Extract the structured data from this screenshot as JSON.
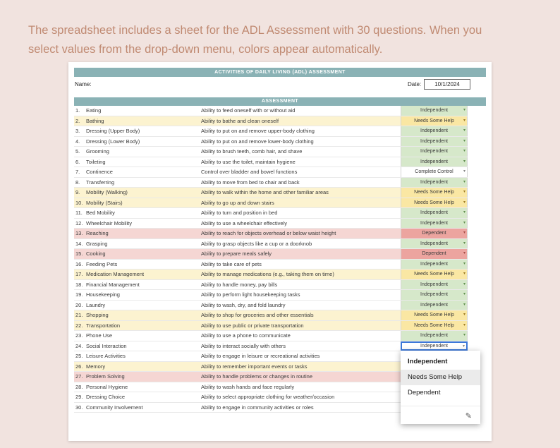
{
  "page": {
    "caption_line1": "The spreadsheet includes a sheet for the ADL Assessment with 30 questions. When you",
    "caption_line2": "select values from the drop-down menu, colors appear automatically."
  },
  "colors": {
    "page_bg": "#f1e3df",
    "caption_text": "#c08a72",
    "header_bg": "#8ab2b5",
    "independent_green": "#d6e8ca",
    "needs_help_yellow_row": "#fcf3d0",
    "needs_help_yellow_cell": "#fae7a3",
    "dependent_pink_row": "#f5d6d3",
    "dependent_red_cell": "#eca49f",
    "selection_border": "#3c78d8"
  },
  "sheet": {
    "title": "ACTIVITIES OF DAILY LIVING (ADL) ASSESSMENT",
    "name_label": "Name:",
    "date_label": "Date:",
    "date_value": "10/1/2024",
    "section_header": "ASSESSMENT",
    "rows": [
      {
        "num": "1.",
        "item": "Eating",
        "desc": "Ability to feed oneself with or without aid",
        "status": "Independent",
        "row_bg": "white",
        "status_style": "green"
      },
      {
        "num": "2.",
        "item": "Bathing",
        "desc": "Ability to bathe and clean oneself",
        "status": "Needs Some Help",
        "row_bg": "yellow",
        "status_style": "yellow"
      },
      {
        "num": "3.",
        "item": "Dressing (Upper Body)",
        "desc": "Ability to put on and remove upper-body clothing",
        "status": "Independent",
        "row_bg": "white",
        "status_style": "green"
      },
      {
        "num": "4.",
        "item": "Dressing (Lower Body)",
        "desc": "Ability to put on and remove lower-body clothing",
        "status": "Independent",
        "row_bg": "white",
        "status_style": "green"
      },
      {
        "num": "5.",
        "item": "Grooming",
        "desc": "Ability to brush teeth, comb hair, and shave",
        "status": "Independent",
        "row_bg": "white",
        "status_style": "green"
      },
      {
        "num": "6.",
        "item": "Toileting",
        "desc": "Ability to use the toilet, maintain hygiene",
        "status": "Independent",
        "row_bg": "white",
        "status_style": "green"
      },
      {
        "num": "7.",
        "item": "Continence",
        "desc": "Control over bladder and bowel functions",
        "status": "Complete Control",
        "row_bg": "white",
        "status_style": "plain"
      },
      {
        "num": "8.",
        "item": "Transferring",
        "desc": "Ability to move from bed to chair and back",
        "status": "Independent",
        "row_bg": "white",
        "status_style": "green"
      },
      {
        "num": "9.",
        "item": "Mobility (Walking)",
        "desc": "Ability to walk within the home and other familiar areas",
        "status": "Needs Some Help",
        "row_bg": "yellow",
        "status_style": "yellow"
      },
      {
        "num": "10.",
        "item": "Mobility (Stairs)",
        "desc": "Ability to go up and down stairs",
        "status": "Needs Some Help",
        "row_bg": "yellow",
        "status_style": "yellow"
      },
      {
        "num": "11.",
        "item": "Bed Mobility",
        "desc": "Ability to turn and position in bed",
        "status": "Independent",
        "row_bg": "white",
        "status_style": "green"
      },
      {
        "num": "12.",
        "item": "Wheelchair Mobility",
        "desc": "Ability to use a wheelchair effectively",
        "status": "Independent",
        "row_bg": "white",
        "status_style": "green"
      },
      {
        "num": "13.",
        "item": "Reaching",
        "desc": "Ability to reach for objects overhead or below waist height",
        "status": "Dependent",
        "row_bg": "pink",
        "status_style": "red"
      },
      {
        "num": "14.",
        "item": "Grasping",
        "desc": "Ability to grasp objects like a cup or a doorknob",
        "status": "Independent",
        "row_bg": "white",
        "status_style": "green"
      },
      {
        "num": "15.",
        "item": "Cooking",
        "desc": "Ability to prepare meals safely",
        "status": "Dependent",
        "row_bg": "pink",
        "status_style": "red"
      },
      {
        "num": "16.",
        "item": "Feeding Pets",
        "desc": "Ability to take care of pets",
        "status": "Independent",
        "row_bg": "white",
        "status_style": "green"
      },
      {
        "num": "17.",
        "item": "Medication Management",
        "desc": "Ability to manage medications (e.g., taking them on time)",
        "status": "Needs Some Help",
        "row_bg": "yellow",
        "status_style": "yellow"
      },
      {
        "num": "18.",
        "item": "Financial Management",
        "desc": "Ability to handle money, pay bills",
        "status": "Independent",
        "row_bg": "white",
        "status_style": "green"
      },
      {
        "num": "19.",
        "item": "Housekeeping",
        "desc": "Ability to perform light housekeeping tasks",
        "status": "Independent",
        "row_bg": "white",
        "status_style": "green"
      },
      {
        "num": "20.",
        "item": "Laundry",
        "desc": "Ability to wash, dry, and fold laundry",
        "status": "Independent",
        "row_bg": "white",
        "status_style": "green"
      },
      {
        "num": "21.",
        "item": "Shopping",
        "desc": "Ability to shop for groceries and other essentials",
        "status": "Needs Some Help",
        "row_bg": "yellow",
        "status_style": "yellow"
      },
      {
        "num": "22.",
        "item": "Transportation",
        "desc": "Ability to use public or private transportation",
        "status": "Needs Some Help",
        "row_bg": "yellow",
        "status_style": "yellow"
      },
      {
        "num": "23.",
        "item": "Phone Use",
        "desc": "Ability to use a phone to communicate",
        "status": "Independent",
        "row_bg": "white",
        "status_style": "green"
      },
      {
        "num": "24.",
        "item": "Social Interaction",
        "desc": "Ability to interact socially with others",
        "status": "Independent",
        "row_bg": "white",
        "status_style": "selected"
      },
      {
        "num": "25.",
        "item": "Leisure Activities",
        "desc": "Ability to engage in leisure or recreational activities",
        "status": "",
        "row_bg": "white",
        "status_style": "hidden"
      },
      {
        "num": "26.",
        "item": "Memory",
        "desc": "Ability to remember important events or tasks",
        "status": "",
        "row_bg": "yellow",
        "status_style": "hidden"
      },
      {
        "num": "27.",
        "item": "Problem Solving",
        "desc": "Ability to handle problems or changes in routine",
        "status": "",
        "row_bg": "pink",
        "status_style": "hidden"
      },
      {
        "num": "28.",
        "item": "Personal Hygiene",
        "desc": "Ability to wash hands and face regularly",
        "status": "",
        "row_bg": "white",
        "status_style": "hidden"
      },
      {
        "num": "29.",
        "item": "Dressing Choice",
        "desc": "Ability to select appropriate clothing for weather/occasion",
        "status": "",
        "row_bg": "white",
        "status_style": "hidden"
      },
      {
        "num": "30.",
        "item": "Community Involvement",
        "desc": "Ability to engage in community activities or roles",
        "status": "",
        "row_bg": "white",
        "status_style": "hidden"
      }
    ]
  },
  "dropdown": {
    "options": [
      {
        "label": "Independent",
        "selected": true,
        "highlighted": false
      },
      {
        "label": "Needs Some Help",
        "selected": false,
        "highlighted": true
      },
      {
        "label": "Dependent",
        "selected": false,
        "highlighted": false
      }
    ],
    "edit_icon": "pencil-icon",
    "edit_glyph": "✎"
  }
}
